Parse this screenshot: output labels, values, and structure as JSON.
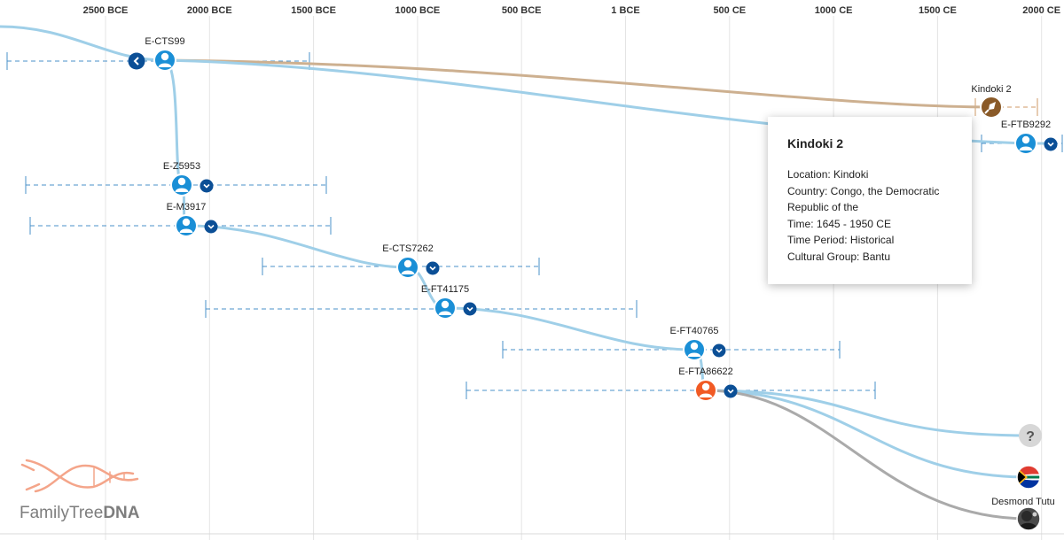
{
  "timeline": {
    "ticks": [
      "2500 BCE",
      "2000 BCE",
      "1500 BCE",
      "1000 BCE",
      "500 BCE",
      "1 BCE",
      "500 CE",
      "1000 CE",
      "1500 CE",
      "2000 CE"
    ]
  },
  "nodes": [
    {
      "id": "E-CTS99",
      "label": "E-CTS99",
      "type": "person",
      "has_collapse": true
    },
    {
      "id": "E-Z5953",
      "label": "E-Z5953",
      "type": "person",
      "has_expand": true
    },
    {
      "id": "E-M3917",
      "label": "E-M3917",
      "type": "person",
      "has_expand": true
    },
    {
      "id": "E-CTS7262",
      "label": "E-CTS7262",
      "type": "person",
      "has_expand": true
    },
    {
      "id": "E-FT41175",
      "label": "E-FT41175",
      "type": "person",
      "has_expand": true
    },
    {
      "id": "E-FT40765",
      "label": "E-FT40765",
      "type": "person",
      "has_expand": true
    },
    {
      "id": "E-FTA86622",
      "label": "E-FTA86622",
      "type": "person-highlighted",
      "has_expand": true
    },
    {
      "id": "E-FTB9292",
      "label": "E-FTB9292",
      "type": "person",
      "has_expand": true
    },
    {
      "id": "Kindoki 2",
      "label": "Kindoki 2",
      "type": "ancient-sample"
    },
    {
      "id": "unknown",
      "label": "?",
      "type": "unknown-country"
    },
    {
      "id": "south-africa",
      "label": "",
      "type": "country-flag"
    },
    {
      "id": "desmond-tutu",
      "label": "Desmond Tutu",
      "type": "notable-person"
    }
  ],
  "popup": {
    "title": "Kindoki 2",
    "lines": [
      "Location: Kindoki",
      "Country: Congo, the Democratic",
      "Republic of the",
      "Time: 1645 - 1950 CE",
      "Time Period: Historical",
      "Cultural Group: Bantu"
    ]
  },
  "logo": {
    "text_light": "FamilyTree",
    "text_bold": "DNA"
  },
  "colors": {
    "branch": "#9fcfe8",
    "ancient_branch": "#cdb090",
    "tutu_branch": "#aaaaaa",
    "node_blue": "#1a8fd6",
    "node_orange": "#f15a24",
    "node_brown": "#8a5a28",
    "toggle": "#0b4f96",
    "range": "#4a90c8"
  },
  "icons": {
    "person": "person-icon",
    "collapse": "chevron-left-icon",
    "expand": "chevron-down-icon",
    "ancient": "arrowhead-icon",
    "unknown": "question-mark-icon",
    "flag": "south-africa-flag-icon",
    "portrait": "portrait-icon"
  }
}
